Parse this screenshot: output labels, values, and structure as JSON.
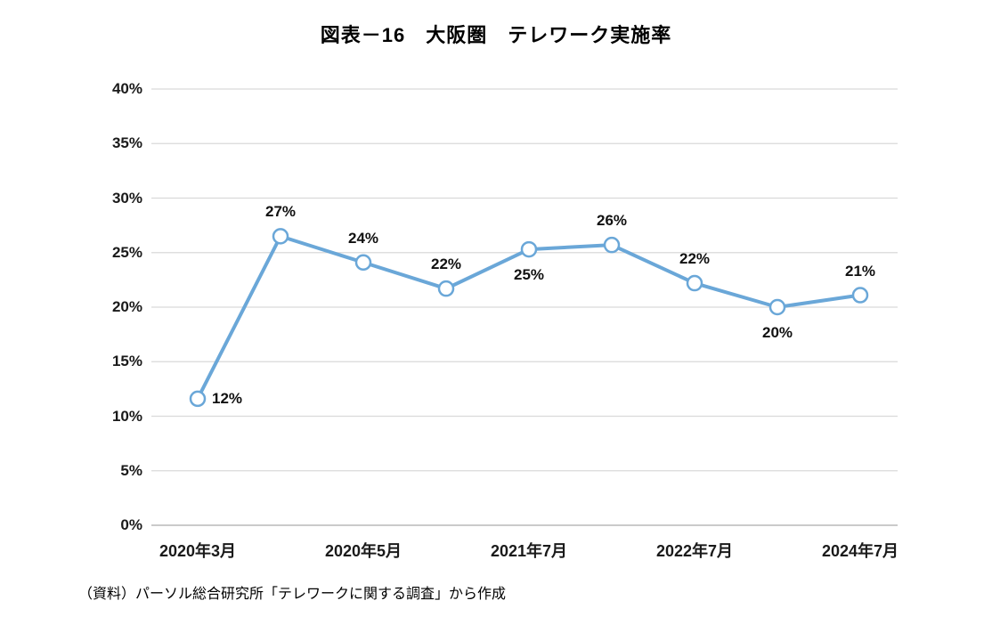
{
  "title": "図表－16　大阪圏　テレワーク実施率",
  "source": "（資料）パーソル総合研究所「テレワークに関する調査」から作成",
  "chart_data": {
    "type": "line",
    "title": "図表－16　大阪圏　テレワーク実施率",
    "xlabel": "",
    "ylabel": "",
    "ylim": [
      0,
      40
    ],
    "grid": "horizontal",
    "legend": "none",
    "line_color": "#6AA7D8",
    "marker_fill": "#FFFFFF",
    "gridline_color": "#D9D9D9",
    "axis_line_color": "#ABABAB",
    "ytick_values": [
      0,
      5,
      10,
      15,
      20,
      25,
      30,
      35,
      40
    ],
    "ytick_labels": [
      "0%",
      "5%",
      "10%",
      "15%",
      "20%",
      "25%",
      "30%",
      "35%",
      "40%"
    ],
    "x_tick_labels": [
      "2020年3月",
      "2020年5月",
      "2021年7月",
      "2022年7月",
      "2024年7月"
    ],
    "x_tick_point_indices": [
      0,
      2,
      4,
      6,
      8
    ],
    "points": [
      {
        "label": "12%",
        "value": 11.6,
        "label_position": "right"
      },
      {
        "label": "27%",
        "value": 26.5,
        "label_position": "above"
      },
      {
        "label": "24%",
        "value": 24.1,
        "label_position": "above"
      },
      {
        "label": "22%",
        "value": 21.7,
        "label_position": "above"
      },
      {
        "label": "25%",
        "value": 25.3,
        "label_position": "below"
      },
      {
        "label": "26%",
        "value": 25.7,
        "label_position": "above"
      },
      {
        "label": "22%",
        "value": 22.2,
        "label_position": "above"
      },
      {
        "label": "20%",
        "value": 20.0,
        "label_position": "below"
      },
      {
        "label": "21%",
        "value": 21.1,
        "label_position": "above"
      }
    ]
  }
}
